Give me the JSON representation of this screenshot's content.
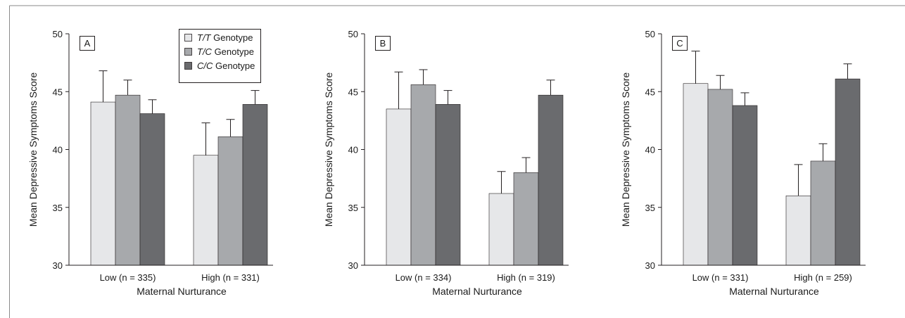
{
  "colors": {
    "tt": "#e6e7e9",
    "tc": "#a7a9ac",
    "cc": "#6a6b6e",
    "axis": "#231f20",
    "frame": "#8a8a8a"
  },
  "legend": {
    "items": [
      {
        "genotype": "T/T",
        "suffix": " Genotype"
      },
      {
        "genotype": "T/C",
        "suffix": " Genotype"
      },
      {
        "genotype": "C/C",
        "suffix": " Genotype"
      }
    ]
  },
  "chart_data": [
    {
      "type": "bar",
      "panel": "A",
      "xlabel": "Maternal Nurturance",
      "ylabel": "Mean Depressive Symptoms Score",
      "ylim": [
        30,
        50
      ],
      "yticks": [
        30,
        35,
        40,
        45,
        50
      ],
      "categories": [
        "Low (n = 335)",
        "High (n = 331)"
      ],
      "series": [
        {
          "name": "T/T Genotype",
          "values": [
            44.1,
            39.5
          ],
          "errors": [
            2.7,
            2.8
          ]
        },
        {
          "name": "T/C Genotype",
          "values": [
            44.7,
            41.1
          ],
          "errors": [
            1.3,
            1.5
          ]
        },
        {
          "name": "C/C Genotype",
          "values": [
            43.1,
            43.9
          ],
          "errors": [
            1.2,
            1.2
          ]
        }
      ]
    },
    {
      "type": "bar",
      "panel": "B",
      "xlabel": "Maternal Nurturance",
      "ylabel": "Mean Depressive Symptoms Score",
      "ylim": [
        30,
        50
      ],
      "yticks": [
        30,
        35,
        40,
        45,
        50
      ],
      "categories": [
        "Low (n = 334)",
        "High (n = 319)"
      ],
      "series": [
        {
          "name": "T/T Genotype",
          "values": [
            43.5,
            36.2
          ],
          "errors": [
            3.2,
            1.9
          ]
        },
        {
          "name": "T/C Genotype",
          "values": [
            45.6,
            38.0
          ],
          "errors": [
            1.3,
            1.3
          ]
        },
        {
          "name": "C/C Genotype",
          "values": [
            43.9,
            44.7
          ],
          "errors": [
            1.2,
            1.3
          ]
        }
      ]
    },
    {
      "type": "bar",
      "panel": "C",
      "xlabel": "Maternal Nurturance",
      "ylabel": "Mean Depressive Symptoms Score",
      "ylim": [
        30,
        50
      ],
      "yticks": [
        30,
        35,
        40,
        45,
        50
      ],
      "categories": [
        "Low (n = 331)",
        "High (n = 259)"
      ],
      "series": [
        {
          "name": "T/T Genotype",
          "values": [
            45.7,
            36.0
          ],
          "errors": [
            2.8,
            2.7
          ]
        },
        {
          "name": "T/C Genotype",
          "values": [
            45.2,
            39.0
          ],
          "errors": [
            1.2,
            1.5
          ]
        },
        {
          "name": "C/C Genotype",
          "values": [
            43.8,
            46.1
          ],
          "errors": [
            1.1,
            1.3
          ]
        }
      ]
    }
  ]
}
